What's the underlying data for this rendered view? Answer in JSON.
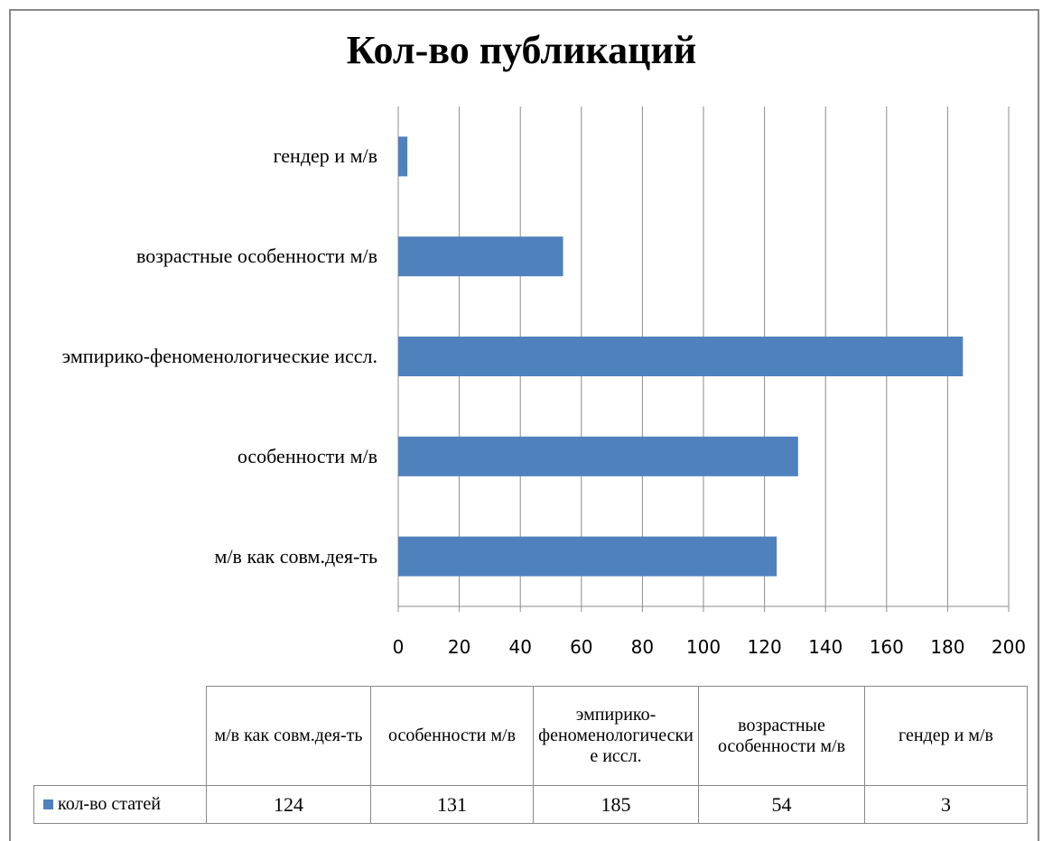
{
  "chart_data": {
    "type": "bar",
    "orientation": "horizontal",
    "title": "Кол-во публикаций",
    "categories": [
      "м/в как совм.дея-ть",
      "особенности м/в",
      "эмпирико-феноменологические иссл.",
      "возрастные особенности м/в",
      "гендер и м/в"
    ],
    "series": [
      {
        "name": "кол-во статей",
        "color": "#4f81bd",
        "values": [
          124,
          131,
          185,
          54,
          3
        ]
      }
    ],
    "xlim": [
      0,
      200
    ],
    "xticks": [
      0,
      20,
      40,
      60,
      80,
      100,
      120,
      140,
      160,
      180,
      200
    ],
    "grid": true,
    "data_table": true
  }
}
